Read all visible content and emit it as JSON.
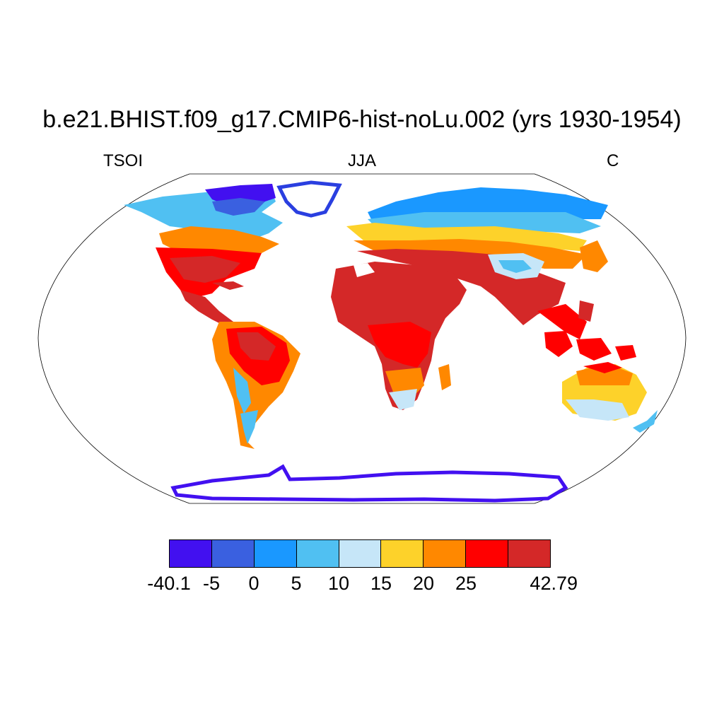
{
  "header": {
    "title": "b.e21.BHIST.f09_g17.CMIP6-hist-noLu.002 (yrs 1930-1954)",
    "left_label": "TSOI",
    "center_label": "JJA",
    "right_label": "C"
  },
  "colorbar": {
    "colors": [
      "#4210f0",
      "#3a60e0",
      "#1a98ff",
      "#50c0f2",
      "#c6e6f8",
      "#fdd22a",
      "#ff8800",
      "#ff0000",
      "#d42828"
    ],
    "labels": [
      "-40.1",
      "-5",
      "0",
      "5",
      "10",
      "15",
      "20",
      "25",
      "42.79"
    ]
  },
  "map": {
    "projection": "Robinson",
    "field": "TSOI",
    "season": "JJA",
    "units": "C"
  }
}
